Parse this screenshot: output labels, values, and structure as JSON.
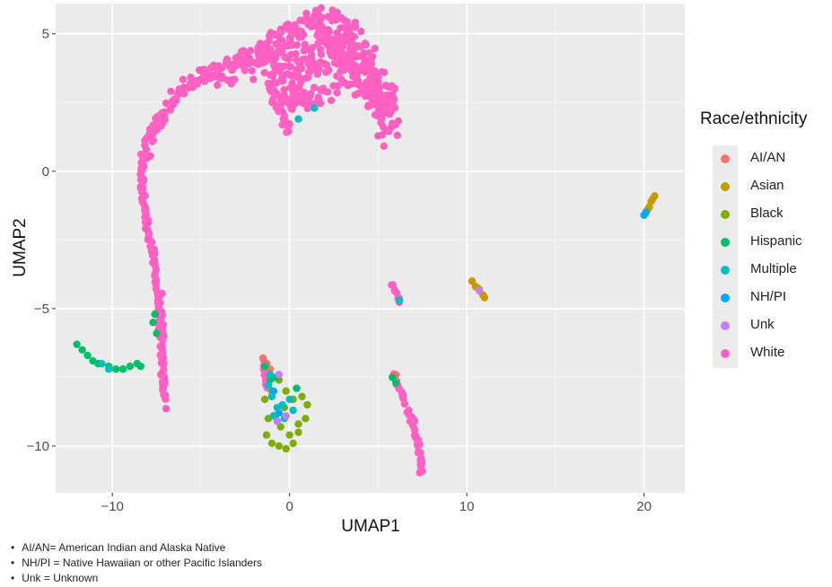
{
  "chart_data": {
    "type": "scatter",
    "xlabel": "UMAP1",
    "ylabel": "UMAP2",
    "xlim": [
      -13.2,
      22.3
    ],
    "ylim": [
      -11.7,
      6.1
    ],
    "x_ticks": [
      -10,
      0,
      10,
      20
    ],
    "x_tick_labels": [
      "−10",
      "0",
      "10",
      "20"
    ],
    "y_ticks": [
      5,
      0,
      -5,
      -10
    ],
    "y_tick_labels": [
      "5",
      "0",
      "−5",
      "−10"
    ],
    "grid": true,
    "legend_title": "Race/ethnicity",
    "legend_position": "right",
    "series": [
      {
        "name": "AI/AN",
        "color": "#F8766D",
        "points": [
          [
            -1.5,
            -6.8
          ],
          [
            -1.3,
            -7.0
          ],
          [
            -1.1,
            -7.2
          ],
          [
            6.0,
            -7.4
          ]
        ]
      },
      {
        "name": "Asian",
        "color": "#C49A00",
        "points": [
          [
            20.3,
            -1.3
          ],
          [
            20.4,
            -1.1
          ],
          [
            20.5,
            -1.0
          ],
          [
            20.6,
            -0.9
          ],
          [
            20.2,
            -1.4
          ],
          [
            10.3,
            -4.0
          ],
          [
            10.5,
            -4.2
          ],
          [
            10.7,
            -4.3
          ],
          [
            10.9,
            -4.5
          ],
          [
            11.0,
            -4.6
          ],
          [
            10.6,
            -4.25
          ]
        ]
      },
      {
        "name": "Black",
        "color": "#7CAE00",
        "points": [
          [
            -1.4,
            -8.3
          ],
          [
            -1.2,
            -9.0
          ],
          [
            -1.3,
            -9.6
          ],
          [
            -1.0,
            -9.9
          ],
          [
            -0.6,
            -10.0
          ],
          [
            -0.2,
            -10.1
          ],
          [
            0.2,
            -9.9
          ],
          [
            0.5,
            -9.5
          ],
          [
            0.9,
            -9.0
          ],
          [
            1.0,
            -8.5
          ],
          [
            0.7,
            -8.2
          ],
          [
            0.2,
            -8.3
          ],
          [
            -0.3,
            -8.6
          ],
          [
            -0.8,
            -8.9
          ],
          [
            -0.5,
            -9.3
          ],
          [
            0.0,
            -9.6
          ],
          [
            0.5,
            -9.2
          ],
          [
            -1.0,
            -8.0
          ],
          [
            -0.6,
            -7.6
          ],
          [
            -0.2,
            -8.0
          ]
        ]
      },
      {
        "name": "Hispanic",
        "color": "#00BE67",
        "points": [
          [
            -12.0,
            -6.3
          ],
          [
            -11.7,
            -6.5
          ],
          [
            -11.4,
            -6.7
          ],
          [
            -11.1,
            -6.9
          ],
          [
            -10.8,
            -7.0
          ],
          [
            -10.2,
            -7.1
          ],
          [
            -9.8,
            -7.2
          ],
          [
            -9.4,
            -7.2
          ],
          [
            -9.0,
            -7.1
          ],
          [
            -8.6,
            -7.0
          ],
          [
            -8.4,
            -7.1
          ],
          [
            -7.6,
            -5.2
          ],
          [
            -7.7,
            -5.5
          ],
          [
            -7.5,
            -5.9
          ],
          [
            -1.4,
            -7.1
          ],
          [
            -1.1,
            -7.6
          ],
          [
            -0.8,
            -7.5
          ],
          [
            0.4,
            -7.9
          ],
          [
            5.8,
            -7.5
          ],
          [
            6.0,
            -7.7
          ]
        ]
      },
      {
        "name": "Multiple",
        "color": "#00BFC4",
        "points": [
          [
            -10.6,
            -7.0
          ],
          [
            -10.2,
            -7.2
          ],
          [
            -1.2,
            -7.8
          ],
          [
            -1.0,
            -8.2
          ],
          [
            -0.7,
            -8.6
          ],
          [
            -0.4,
            -8.5
          ],
          [
            -0.9,
            -8.9
          ],
          [
            -0.3,
            -9.0
          ],
          [
            0.2,
            -8.7
          ],
          [
            0.0,
            -8.3
          ],
          [
            -1.1,
            -7.4
          ],
          [
            0.5,
            1.9
          ],
          [
            1.4,
            2.3
          ],
          [
            6.2,
            -4.7
          ]
        ]
      },
      {
        "name": "NH/PI",
        "color": "#00A9FF",
        "points": [
          [
            20.0,
            -1.6
          ],
          [
            20.1,
            -1.5
          ],
          [
            -0.9,
            -8.0
          ],
          [
            -0.6,
            -8.8
          ]
        ]
      },
      {
        "name": "Unk",
        "color": "#C77CFF",
        "points": [
          [
            -0.6,
            -7.4
          ],
          [
            -0.2,
            -8.9
          ],
          [
            -0.7,
            -9.1
          ],
          [
            10.7,
            -4.35
          ]
        ]
      },
      {
        "name": "White",
        "color": "#FF61C3",
        "curves": [
          {
            "from": [
              -7.0,
              -8.6
            ],
            "via": [
              -7.5,
              -4.0
            ],
            "to": [
              -7.7,
              -2.9
            ],
            "n": 45,
            "jitter": 0.1
          },
          {
            "from": [
              -7.7,
              -3.0
            ],
            "via": [
              -8.6,
              -0.5
            ],
            "to": [
              -8.2,
              0.6
            ],
            "n": 60,
            "jitter": 0.12
          },
          {
            "from": [
              -8.2,
              0.6
            ],
            "via": [
              -6.5,
              3.5
            ],
            "to": [
              -3.8,
              3.7
            ],
            "n": 90,
            "jitter": 0.25
          },
          {
            "from": [
              -3.8,
              3.5
            ],
            "via": [
              -1.0,
              4.6
            ],
            "to": [
              1.5,
              5.5
            ],
            "n": 110,
            "jitter": 0.45
          },
          {
            "from": [
              1.5,
              5.3
            ],
            "via": [
              4.6,
              5.2
            ],
            "to": [
              5.8,
              1.4
            ],
            "n": 140,
            "jitter": 0.7
          },
          {
            "from": [
              -1.4,
              4.0
            ],
            "via": [
              0.0,
              3.0
            ],
            "to": [
              2.0,
              4.3
            ],
            "n": 90,
            "jitter": 0.7
          },
          {
            "from": [
              -0.8,
              2.7
            ],
            "via": [
              0.5,
              2.3
            ],
            "to": [
              2.5,
              3.0
            ],
            "n": 50,
            "jitter": 0.35
          },
          {
            "from": [
              2.0,
              4.8
            ],
            "via": [
              4.0,
              3.5
            ],
            "to": [
              5.2,
              2.5
            ],
            "n": 100,
            "jitter": 0.6
          },
          {
            "from": [
              -1.3,
              3.3
            ],
            "via": [
              -0.6,
              2.0
            ],
            "to": [
              0.0,
              1.5
            ],
            "n": 25,
            "jitter": 0.2
          },
          {
            "from": [
              -7.3,
              -4.5
            ],
            "via": [
              -7.2,
              -6.5
            ],
            "to": [
              -7.1,
              -8.2
            ],
            "n": 35,
            "jitter": 0.12
          },
          {
            "from": [
              5.8,
              -7.3
            ],
            "via": [
              6.2,
              -7.9
            ],
            "to": [
              6.5,
              -8.4
            ],
            "n": 12,
            "jitter": 0.08
          },
          {
            "from": [
              6.7,
              -8.7
            ],
            "via": [
              7.4,
              -9.8
            ],
            "to": [
              7.4,
              -10.9
            ],
            "n": 30,
            "jitter": 0.1
          },
          {
            "from": [
              5.8,
              -4.1
            ],
            "via": [
              6.0,
              -4.4
            ],
            "to": [
              6.2,
              -4.8
            ],
            "n": 8,
            "jitter": 0.06
          },
          {
            "from": [
              -1.5,
              -6.9
            ],
            "via": [
              -1.4,
              -7.4
            ],
            "to": [
              -1.3,
              -7.9
            ],
            "n": 8,
            "jitter": 0.05
          }
        ]
      }
    ]
  },
  "notes": [
    "AI/AN= American Indian and Alaska Native",
    "NH/PI = Native Hawaiian or other Pacific Islanders",
    "Unk = Unknown"
  ]
}
